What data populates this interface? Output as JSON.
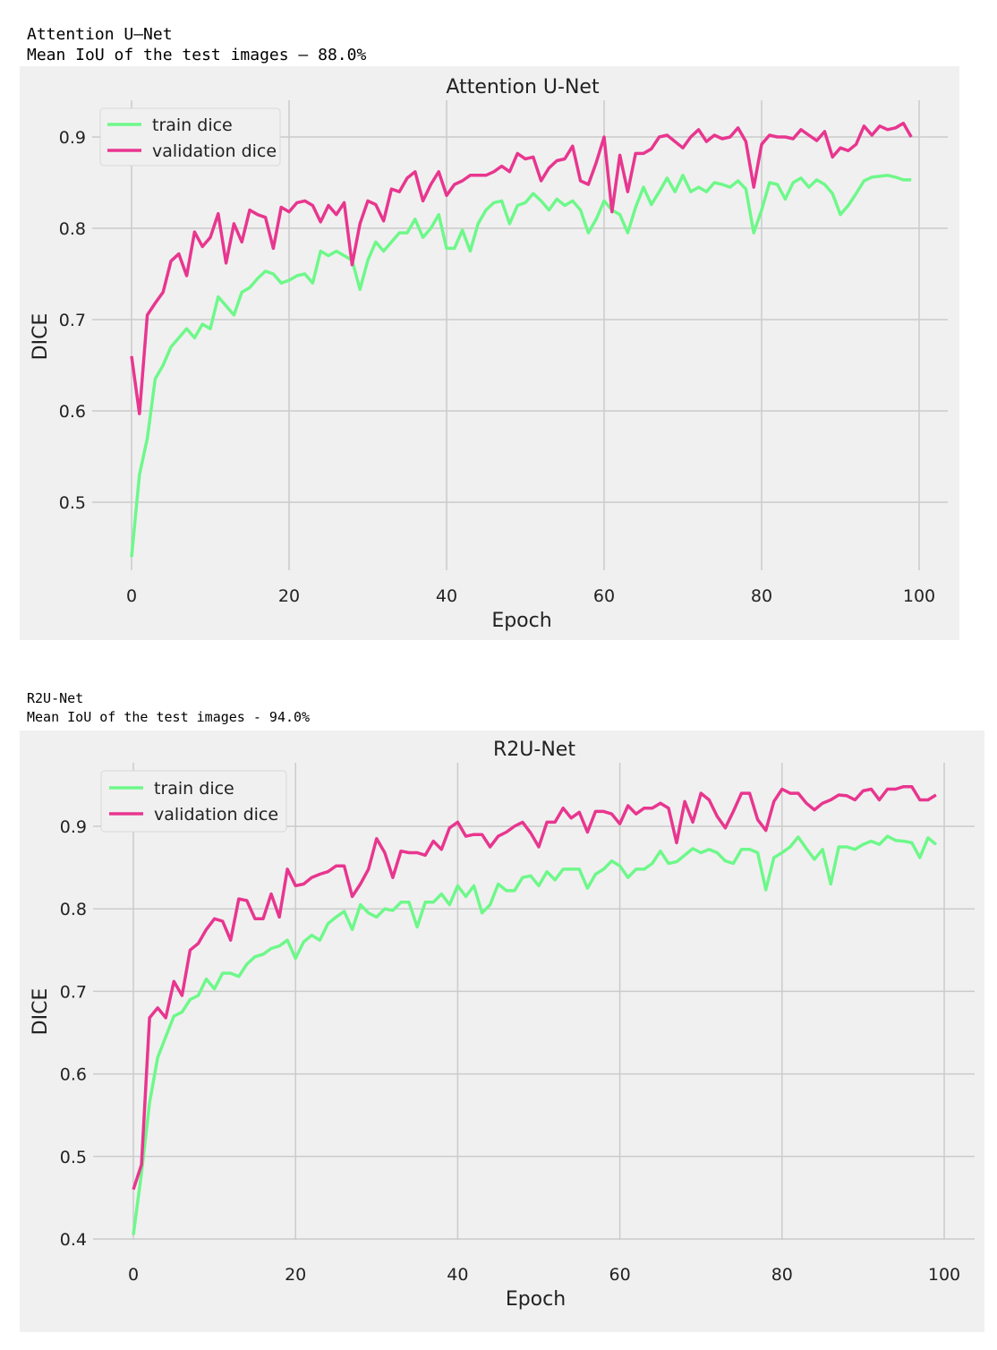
{
  "outputs": [
    {
      "line1": "Attention U–Net",
      "line2": "Mean IoU of the test images – 88.0%"
    },
    {
      "line1": "R2U-Net",
      "line2": "Mean IoU of the test images - 94.0%"
    }
  ],
  "colors": {
    "train": "#6ef88a",
    "validation": "#e8368f",
    "background": "#f0f0f0",
    "grid": "#cbcbcb"
  },
  "chart_data": [
    {
      "type": "line",
      "title": "Attention U-Net",
      "xlabel": "Epoch",
      "ylabel": "DICE",
      "xlim": [
        -5,
        104
      ],
      "ylim": [
        0.42,
        0.935
      ],
      "xticks": [
        0,
        20,
        40,
        60,
        80,
        100
      ],
      "xtick_labels": [
        "0",
        "20",
        "40",
        "60",
        "80",
        "100"
      ],
      "yticks": [
        0.5,
        0.6,
        0.7,
        0.8,
        0.9
      ],
      "ytick_labels": [
        "0.5",
        "0.6",
        "0.7",
        "0.8",
        "0.9"
      ],
      "grid": true,
      "legend": "upper-left",
      "series": [
        {
          "name": "train dice",
          "color": "#6ef88a",
          "values": [
            0.44,
            0.53,
            0.57,
            0.635,
            0.65,
            0.67,
            0.68,
            0.69,
            0.68,
            0.695,
            0.69,
            0.725,
            0.715,
            0.705,
            0.73,
            0.735,
            0.745,
            0.753,
            0.75,
            0.74,
            0.743,
            0.748,
            0.75,
            0.74,
            0.775,
            0.77,
            0.775,
            0.77,
            0.765,
            0.733,
            0.765,
            0.785,
            0.775,
            0.785,
            0.795,
            0.795,
            0.81,
            0.79,
            0.8,
            0.815,
            0.778,
            0.778,
            0.798,
            0.775,
            0.805,
            0.82,
            0.828,
            0.83,
            0.805,
            0.825,
            0.828,
            0.838,
            0.83,
            0.82,
            0.832,
            0.825,
            0.83,
            0.82,
            0.795,
            0.81,
            0.83,
            0.82,
            0.815,
            0.795,
            0.823,
            0.845,
            0.826,
            0.84,
            0.855,
            0.84,
            0.858,
            0.84,
            0.845,
            0.84,
            0.85,
            0.848,
            0.845,
            0.852,
            0.843,
            0.795,
            0.82,
            0.85,
            0.848,
            0.832,
            0.85,
            0.855,
            0.845,
            0.853,
            0.848,
            0.838,
            0.815,
            0.825,
            0.838,
            0.852,
            0.856,
            0.857,
            0.858,
            0.856,
            0.853,
            0.853
          ]
        },
        {
          "name": "validation dice",
          "color": "#e8368f",
          "values": [
            0.66,
            0.597,
            0.705,
            0.718,
            0.73,
            0.764,
            0.772,
            0.748,
            0.796,
            0.78,
            0.79,
            0.816,
            0.762,
            0.805,
            0.785,
            0.82,
            0.815,
            0.812,
            0.778,
            0.823,
            0.818,
            0.828,
            0.83,
            0.825,
            0.807,
            0.825,
            0.815,
            0.828,
            0.76,
            0.805,
            0.83,
            0.826,
            0.808,
            0.843,
            0.84,
            0.855,
            0.862,
            0.83,
            0.848,
            0.862,
            0.836,
            0.848,
            0.852,
            0.858,
            0.858,
            0.858,
            0.862,
            0.868,
            0.862,
            0.882,
            0.876,
            0.878,
            0.852,
            0.866,
            0.874,
            0.876,
            0.89,
            0.852,
            0.848,
            0.872,
            0.9,
            0.818,
            0.88,
            0.84,
            0.882,
            0.882,
            0.887,
            0.9,
            0.902,
            0.895,
            0.888,
            0.9,
            0.908,
            0.895,
            0.902,
            0.898,
            0.9,
            0.91,
            0.895,
            0.845,
            0.892,
            0.902,
            0.9,
            0.9,
            0.898,
            0.908,
            0.902,
            0.896,
            0.906,
            0.878,
            0.888,
            0.885,
            0.892,
            0.912,
            0.902,
            0.912,
            0.908,
            0.91,
            0.915,
            0.9
          ]
        }
      ]
    },
    {
      "type": "line",
      "title": "R2U-Net",
      "xlabel": "Epoch",
      "ylabel": "DICE",
      "xlim": [
        -5,
        104
      ],
      "ylim": [
        0.385,
        0.985
      ],
      "xticks": [
        0,
        20,
        40,
        60,
        80,
        100
      ],
      "xtick_labels": [
        "0",
        "20",
        "40",
        "60",
        "80",
        "100"
      ],
      "yticks": [
        0.4,
        0.5,
        0.6,
        0.7,
        0.8,
        0.9
      ],
      "ytick_labels": [
        "0.4",
        "0.5",
        "0.6",
        "0.7",
        "0.8",
        "0.9"
      ],
      "grid": true,
      "legend": "upper-left",
      "series": [
        {
          "name": "train dice",
          "color": "#6ef88a",
          "values": [
            0.405,
            0.48,
            0.565,
            0.62,
            0.645,
            0.67,
            0.675,
            0.69,
            0.695,
            0.715,
            0.703,
            0.722,
            0.722,
            0.718,
            0.733,
            0.742,
            0.745,
            0.752,
            0.755,
            0.762,
            0.74,
            0.76,
            0.768,
            0.762,
            0.782,
            0.79,
            0.797,
            0.775,
            0.805,
            0.795,
            0.79,
            0.8,
            0.798,
            0.808,
            0.808,
            0.778,
            0.808,
            0.808,
            0.818,
            0.805,
            0.828,
            0.815,
            0.828,
            0.795,
            0.805,
            0.83,
            0.822,
            0.822,
            0.838,
            0.84,
            0.828,
            0.845,
            0.835,
            0.848,
            0.848,
            0.848,
            0.825,
            0.842,
            0.848,
            0.858,
            0.852,
            0.838,
            0.848,
            0.848,
            0.855,
            0.87,
            0.855,
            0.857,
            0.865,
            0.873,
            0.868,
            0.872,
            0.868,
            0.858,
            0.855,
            0.872,
            0.872,
            0.868,
            0.823,
            0.862,
            0.868,
            0.875,
            0.887,
            0.873,
            0.86,
            0.872,
            0.83,
            0.875,
            0.875,
            0.872,
            0.878,
            0.882,
            0.878,
            0.888,
            0.883,
            0.882,
            0.88,
            0.862,
            0.886,
            0.878
          ]
        },
        {
          "name": "validation dice",
          "color": "#e8368f",
          "values": [
            0.46,
            0.49,
            0.668,
            0.68,
            0.668,
            0.712,
            0.695,
            0.75,
            0.758,
            0.775,
            0.788,
            0.785,
            0.762,
            0.812,
            0.81,
            0.788,
            0.788,
            0.818,
            0.79,
            0.848,
            0.828,
            0.83,
            0.838,
            0.842,
            0.845,
            0.852,
            0.852,
            0.815,
            0.83,
            0.848,
            0.885,
            0.868,
            0.838,
            0.87,
            0.868,
            0.868,
            0.865,
            0.882,
            0.872,
            0.898,
            0.905,
            0.888,
            0.89,
            0.89,
            0.875,
            0.888,
            0.893,
            0.9,
            0.905,
            0.892,
            0.875,
            0.905,
            0.905,
            0.922,
            0.91,
            0.917,
            0.893,
            0.918,
            0.918,
            0.915,
            0.903,
            0.925,
            0.915,
            0.922,
            0.922,
            0.928,
            0.922,
            0.88,
            0.93,
            0.905,
            0.94,
            0.932,
            0.912,
            0.898,
            0.918,
            0.94,
            0.94,
            0.908,
            0.895,
            0.93,
            0.945,
            0.94,
            0.94,
            0.928,
            0.92,
            0.928,
            0.932,
            0.938,
            0.937,
            0.932,
            0.943,
            0.945,
            0.932,
            0.945,
            0.945,
            0.948,
            0.948,
            0.932,
            0.932,
            0.938
          ]
        }
      ]
    }
  ]
}
